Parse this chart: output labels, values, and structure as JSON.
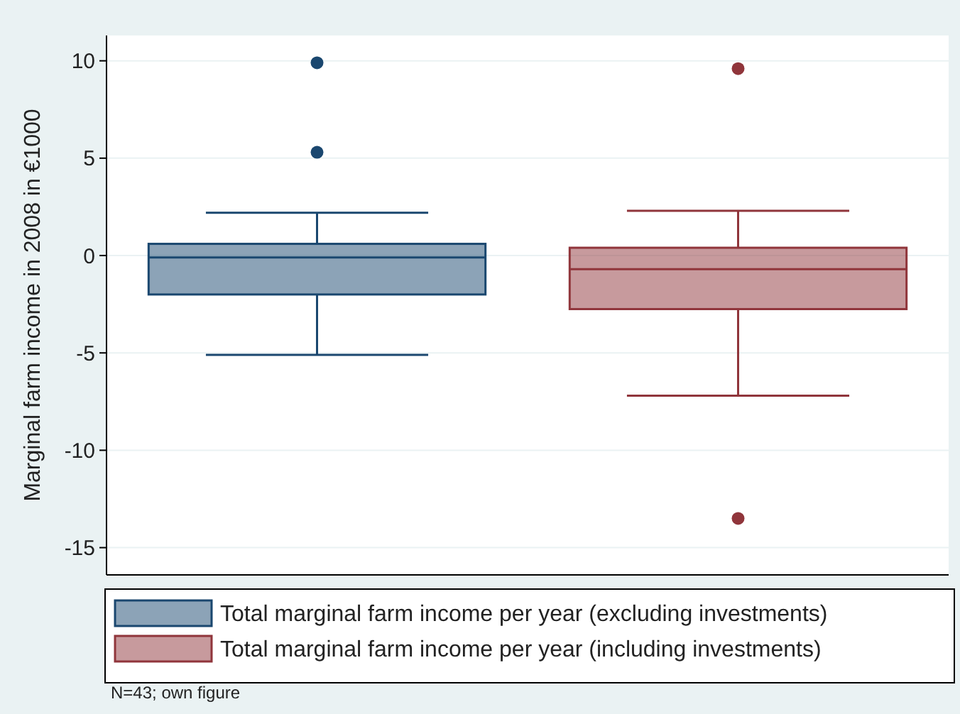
{
  "chart_data": {
    "type": "box",
    "ylabel": "Marginal farm income in 2008 in  €1000",
    "categories": [
      null,
      null
    ],
    "series": [
      {
        "name": "Total marginal farm income per year (excluding investments)",
        "color": "#1a476f",
        "boxes": [
          {
            "low": -5.1,
            "q1": -2.0,
            "median": -0.1,
            "q3": 0.6,
            "high": 2.2,
            "outliers": [
              9.9,
              5.3
            ]
          },
          null
        ]
      },
      {
        "name": "Total marginal farm income per year (including investments)",
        "color": "#90353b",
        "boxes": [
          null,
          {
            "low": -7.2,
            "q1": -2.75,
            "median": -0.7,
            "q3": 0.4,
            "high": 2.3,
            "outliers": [
              9.6,
              -13.5
            ]
          }
        ]
      }
    ],
    "ylim": [
      -16.4,
      11.3
    ],
    "yticks": [
      -15,
      -10,
      -5,
      0,
      5,
      10
    ],
    "grid": "y",
    "legend": "bottom",
    "tick_labels": "y",
    "annotations": [
      "N=43; own figure"
    ]
  }
}
